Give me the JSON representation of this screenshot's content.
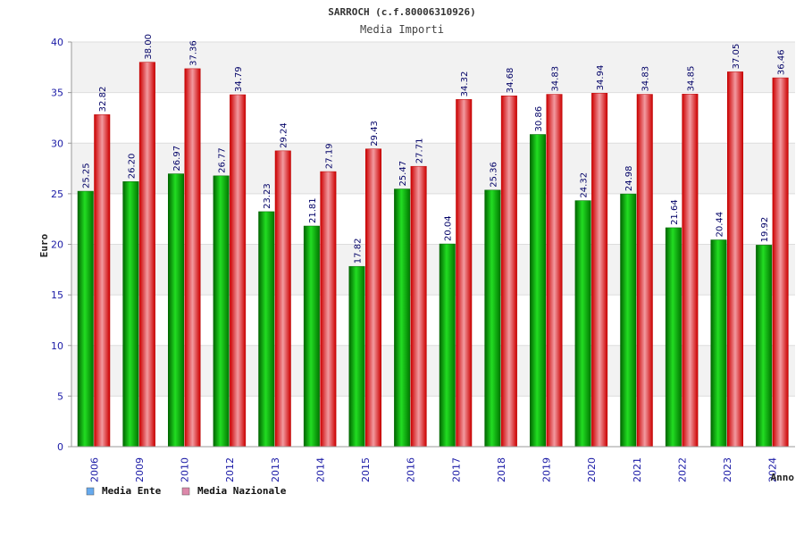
{
  "chart_data": {
    "type": "bar",
    "title": "SARROCH (c.f.80006310926)",
    "subtitle": "Media Importi",
    "xlabel": "Anno",
    "ylabel": "Euro",
    "ylim": [
      0,
      40
    ],
    "yticks": [
      0,
      5,
      10,
      15,
      20,
      25,
      30,
      35,
      40
    ],
    "categories": [
      "2006",
      "2009",
      "2010",
      "2012",
      "2013",
      "2014",
      "2015",
      "2016",
      "2017",
      "2018",
      "2019",
      "2020",
      "2021",
      "2022",
      "2023",
      "2024"
    ],
    "series": [
      {
        "name": "Media Ente",
        "color": "#00cc00",
        "values": [
          25.25,
          26.2,
          26.97,
          26.77,
          23.23,
          21.81,
          17.82,
          25.47,
          20.04,
          25.36,
          30.86,
          24.32,
          24.98,
          21.64,
          20.44,
          19.92
        ],
        "labels": [
          "25.25",
          "26.20",
          "26.97",
          "26.77",
          "23.23",
          "21.81",
          "17.82",
          "25.47",
          "20.04",
          "25.36",
          "30.86",
          "24.32",
          "24.98",
          "21.64",
          "20.44",
          "19.92"
        ]
      },
      {
        "name": "Media Nazionale",
        "color": "#ee1111",
        "values": [
          32.82,
          38.0,
          37.36,
          34.79,
          29.24,
          27.19,
          29.43,
          27.71,
          34.32,
          34.68,
          34.83,
          34.94,
          34.83,
          34.85,
          37.05,
          36.46
        ],
        "labels": [
          "32.82",
          "38.00",
          "37.36",
          "34.79",
          "29.24",
          "27.19",
          "29.43",
          "27.71",
          "34.32",
          "34.68",
          "34.83",
          "34.94",
          "34.83",
          "34.85",
          "37.05",
          "36.46"
        ]
      }
    ],
    "legend": {
      "placement": "bottom-left",
      "items": [
        {
          "label": "Media Ente",
          "swatch": "#66aaee"
        },
        {
          "label": "Media Nazionale",
          "swatch": "#dd88aa"
        }
      ]
    },
    "grid": true,
    "band_colors": [
      "#f2f2f2",
      "#ffffff"
    ]
  }
}
